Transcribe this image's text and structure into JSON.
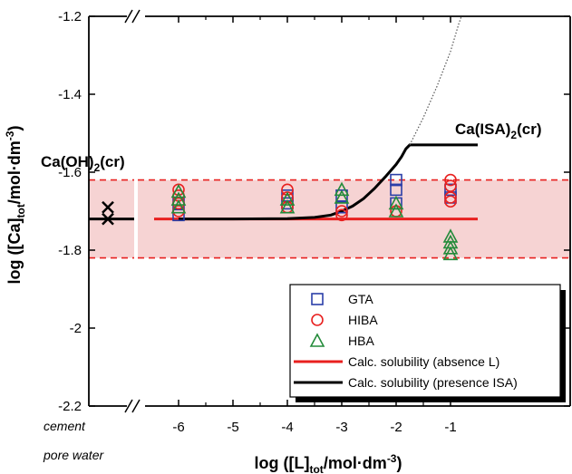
{
  "chart_data": {
    "type": "scatter",
    "xlabel": {
      "main": "log ([L]",
      "sub": "tot",
      "unit": "/mol·dm",
      "sup": "-3",
      "close": ")"
    },
    "ylabel": {
      "main": "log ([Ca]",
      "sub": "tot",
      "unit": "/mol·dm",
      "sup": "-3",
      "close": ")"
    },
    "xlim": [
      -6.5,
      -0.5
    ],
    "ylim": [
      -2.2,
      -1.2
    ],
    "x_ticks": [
      {
        "value": -6,
        "label": "-6"
      },
      {
        "value": -5,
        "label": "-5"
      },
      {
        "value": -4,
        "label": "-4"
      },
      {
        "value": -3,
        "label": "-3"
      },
      {
        "value": -2,
        "label": "-2"
      },
      {
        "value": -1,
        "label": "-1"
      }
    ],
    "y_ticks": [
      {
        "value": -1.2,
        "label": "-1.2"
      },
      {
        "value": -1.4,
        "label": "-1.4"
      },
      {
        "value": -1.6,
        "label": "-1.6"
      },
      {
        "value": -1.8,
        "label": "-1.8"
      },
      {
        "value": -2.0,
        "label": "-2"
      },
      {
        "value": -2.2,
        "label": "-2.2"
      }
    ],
    "cement_label_1": "cement",
    "cement_label_2": "pore water",
    "cement_point": {
      "name": "cement pore water",
      "x": -7.3,
      "y": [
        -1.69,
        -1.72
      ]
    },
    "annotations": {
      "caoh2": {
        "main": "Ca(OH)",
        "sub": "2",
        "tail": "(cr)"
      },
      "caisa": {
        "main": "Ca(ISA)",
        "sub": "2",
        "tail": "(cr)"
      }
    },
    "band": {
      "center": -1.72,
      "lower": -1.82,
      "upper": -1.62,
      "fill": "#f6d3d3",
      "line": "#e8201f"
    },
    "series": [
      {
        "name": "GTA",
        "marker": "square",
        "color": "#2b3fa8",
        "points": [
          [
            -6,
            -1.68
          ],
          [
            -6,
            -1.71
          ],
          [
            -4,
            -1.66
          ],
          [
            -4,
            -1.68
          ],
          [
            -3,
            -1.66
          ],
          [
            -3,
            -1.69
          ],
          [
            -2,
            -1.62
          ],
          [
            -2,
            -1.645
          ],
          [
            -2,
            -1.68
          ],
          [
            -1,
            -1.645
          ],
          [
            -1,
            -1.665
          ]
        ]
      },
      {
        "name": "HIBA",
        "marker": "circle",
        "color": "#e8201f",
        "points": [
          [
            -6,
            -1.645
          ],
          [
            -6,
            -1.66
          ],
          [
            -6,
            -1.68
          ],
          [
            -6,
            -1.7
          ],
          [
            -4,
            -1.645
          ],
          [
            -4,
            -1.665
          ],
          [
            -4,
            -1.69
          ],
          [
            -3,
            -1.7
          ],
          [
            -3,
            -1.71
          ],
          [
            -2,
            -1.7
          ],
          [
            -1,
            -1.62
          ],
          [
            -1,
            -1.635
          ],
          [
            -1,
            -1.665
          ],
          [
            -1,
            -1.675
          ]
        ]
      },
      {
        "name": "HBA",
        "marker": "triangle",
        "color": "#238b3a",
        "points": [
          [
            -6,
            -1.65
          ],
          [
            -6,
            -1.67
          ],
          [
            -6,
            -1.69
          ],
          [
            -4,
            -1.67
          ],
          [
            -4,
            -1.69
          ],
          [
            -3,
            -1.645
          ],
          [
            -3,
            -1.665
          ],
          [
            -2,
            -1.68
          ],
          [
            -2,
            -1.7
          ],
          [
            -1,
            -1.765
          ],
          [
            -1,
            -1.78
          ],
          [
            -1,
            -1.795
          ],
          [
            -1,
            -1.81
          ]
        ]
      },
      {
        "name": "Calc. solubility (absence L)",
        "line": true,
        "color": "#e8201f",
        "points": [
          [
            -6.45,
            -1.72
          ],
          [
            -0.5,
            -1.72
          ]
        ]
      },
      {
        "name": "Calc. solubility (presence ISA)",
        "line": true,
        "color": "#000000",
        "points": [
          [
            -6.0,
            -1.72
          ],
          [
            -5.0,
            -1.72
          ],
          [
            -4.0,
            -1.719
          ],
          [
            -3.5,
            -1.716
          ],
          [
            -3.2,
            -1.71
          ],
          [
            -3.0,
            -1.7
          ],
          [
            -2.8,
            -1.687
          ],
          [
            -2.6,
            -1.668
          ],
          [
            -2.4,
            -1.642
          ],
          [
            -2.2,
            -1.612
          ],
          [
            -2.0,
            -1.58
          ],
          [
            -1.9,
            -1.56
          ],
          [
            -1.82,
            -1.54
          ],
          [
            -1.75,
            -1.53
          ],
          [
            -0.5,
            -1.53
          ]
        ]
      },
      {
        "name": "metastable extension",
        "line": true,
        "dotted": true,
        "color": "#555555",
        "points": [
          [
            -1.75,
            -1.53
          ],
          [
            -1.5,
            -1.46
          ],
          [
            -1.25,
            -1.38
          ],
          [
            -1.0,
            -1.29
          ],
          [
            -0.85,
            -1.22
          ],
          [
            -0.8,
            -1.2
          ]
        ]
      }
    ],
    "legend": {
      "placement": "bottom-right"
    }
  }
}
